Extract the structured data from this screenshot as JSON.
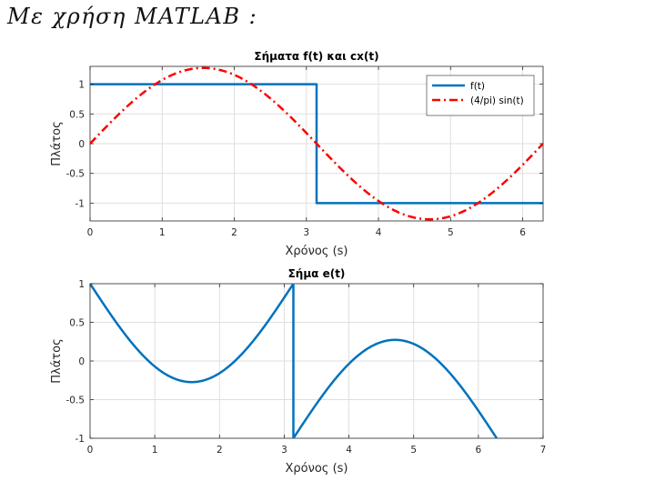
{
  "note": {
    "text": "Με χρήση MATLAB :"
  },
  "chart_data": [
    {
      "type": "line",
      "title": "Σήματα f(t) και cx(t)",
      "xlabel": "Χρόνος (s)",
      "ylabel": "Πλάτος",
      "xlim": [
        0,
        6.2832
      ],
      "ylim": [
        -1.3,
        1.3
      ],
      "xticks": [
        0,
        1,
        2,
        3,
        4,
        5,
        6
      ],
      "yticks": [
        1,
        0.5,
        0,
        -0.5,
        -1
      ],
      "grid": true,
      "legend": "top-right",
      "series": [
        {
          "name": "f(t)",
          "color": "#0072BD",
          "style": "solid",
          "points": [
            [
              0,
              1
            ],
            [
              3.1416,
              1
            ],
            [
              3.1416,
              -1
            ],
            [
              6.2832,
              -1
            ]
          ]
        },
        {
          "name": "(4/pi) sin(t)",
          "color": "#FF0000",
          "style": "dash-dot",
          "function": "4/pi*sin(t)",
          "range": [
            0,
            6.2832
          ]
        }
      ]
    },
    {
      "type": "line",
      "title": "Σήμα e(t)",
      "xlabel": "Χρόνος (s)",
      "ylabel": "Πλάτος",
      "xlim": [
        0,
        7
      ],
      "ylim": [
        -1,
        1
      ],
      "xticks": [
        0,
        1,
        2,
        3,
        4,
        5,
        6,
        7
      ],
      "yticks": [
        1,
        0.5,
        0,
        -0.5,
        -1
      ],
      "grid": true,
      "series": [
        {
          "color": "#0072BD",
          "style": "solid",
          "function": "f(t) - 4/pi*sin(t)",
          "range": [
            0,
            6.2832
          ]
        }
      ]
    }
  ]
}
